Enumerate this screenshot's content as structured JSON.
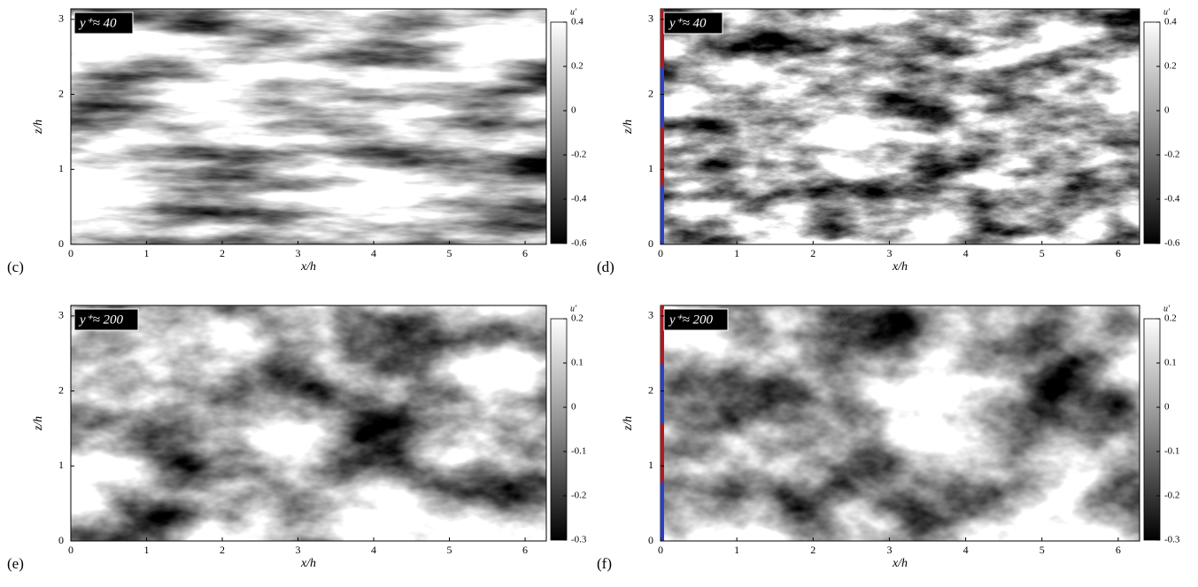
{
  "panels": [
    {
      "label": "(c)",
      "inset": "y⁺≈ 40",
      "xlabel": "x/h",
      "ylabel": "z/h",
      "xlim": [
        0,
        6.28
      ],
      "ylim": [
        0,
        3.14
      ],
      "xticks": [
        0,
        1,
        2,
        3,
        4,
        5,
        6
      ],
      "yticks": [
        0,
        1,
        2,
        3
      ],
      "colorbar": {
        "title": "u'",
        "lim": [
          -0.6,
          0.4
        ],
        "ticks": [
          0.4,
          0.2,
          0,
          -0.2,
          -0.4,
          -0.6
        ]
      }
    },
    {
      "label": "(d)",
      "inset": "y⁺≈ 40",
      "xlabel": "x/h",
      "ylabel": "z/h",
      "xlim": [
        0,
        6.28
      ],
      "ylim": [
        0,
        3.14
      ],
      "xticks": [
        0,
        1,
        2,
        3,
        4,
        5,
        6
      ],
      "yticks": [
        0,
        1,
        2,
        3
      ],
      "colorbar": {
        "title": "u'",
        "lim": [
          -0.6,
          0.4
        ],
        "ticks": [
          0.4,
          0.2,
          0,
          -0.2,
          -0.4,
          -0.6
        ]
      }
    },
    {
      "label": "(e)",
      "inset": "y⁺≈ 200",
      "xlabel": "x/h",
      "ylabel": "z/h",
      "xlim": [
        0,
        6.28
      ],
      "ylim": [
        0,
        3.14
      ],
      "xticks": [
        0,
        1,
        2,
        3,
        4,
        5,
        6
      ],
      "yticks": [
        0,
        1,
        2,
        3
      ],
      "colorbar": {
        "title": "u'",
        "lim": [
          -0.3,
          0.2
        ],
        "ticks": [
          0.2,
          0.1,
          0,
          -0.1,
          -0.2,
          -0.3
        ]
      }
    },
    {
      "label": "(f)",
      "inset": "y⁺≈ 200",
      "xlabel": "x/h",
      "ylabel": "z/h",
      "xlim": [
        0,
        6.28
      ],
      "ylim": [
        0,
        3.14
      ],
      "xticks": [
        0,
        1,
        2,
        3,
        4,
        5,
        6
      ],
      "yticks": [
        0,
        1,
        2,
        3
      ],
      "colorbar": {
        "title": "u'",
        "lim": [
          -0.3,
          0.2
        ],
        "ticks": [
          0.2,
          0.1,
          0,
          -0.1,
          -0.2,
          -0.3
        ]
      }
    }
  ]
}
